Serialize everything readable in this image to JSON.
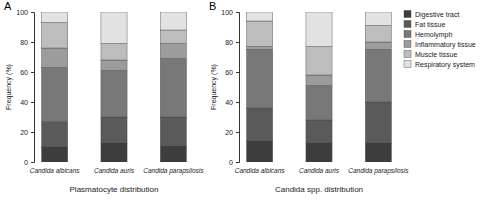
{
  "chart_data": [
    {
      "type": "bar",
      "stacked": true,
      "title": "A",
      "x_label": "Plasmatocyte distribution",
      "y_label": "Frequency (%)",
      "categories": [
        "Candida albicans",
        null,
        "Candida auris",
        null,
        "Candida parapsilosis"
      ],
      "ylim": [
        0,
        100
      ],
      "yticks": [
        0,
        20,
        40,
        60,
        80,
        100
      ],
      "series": [
        {
          "name": "Digestive tract",
          "color": "#3d3d3d",
          "values": [
            10,
            0,
            13,
            0,
            11
          ]
        },
        {
          "name": "Fat tissue",
          "color": "#5a5a5a",
          "values": [
            17,
            0,
            17,
            0,
            19
          ]
        },
        {
          "name": "Hemolymph",
          "color": "#787878",
          "values": [
            36,
            0,
            31,
            0,
            39
          ]
        },
        {
          "name": "Inflammatory tissue",
          "color": "#9c9c9c",
          "values": [
            13,
            0,
            7,
            0,
            10
          ]
        },
        {
          "name": "Muscle tissue",
          "color": "#bdbdbd",
          "values": [
            17,
            0,
            11,
            0,
            9
          ]
        },
        {
          "name": "Respiratory system",
          "color": "#e2e2e2",
          "values": [
            7,
            0,
            21,
            0,
            12
          ]
        }
      ]
    },
    {
      "type": "bar",
      "stacked": true,
      "title": "B",
      "legend": "right",
      "x_label": "Candida spp. distribution",
      "y_label": "Frequency (%)",
      "categories": [
        "Candida albicans",
        null,
        "Candida auris",
        null,
        "Candida parapsilosis"
      ],
      "ylim": [
        0,
        100
      ],
      "yticks": [
        0,
        20,
        40,
        60,
        80,
        100
      ],
      "series": [
        {
          "name": "Digestive tract",
          "color": "#3d3d3d",
          "values": [
            14,
            0,
            13,
            0,
            13
          ]
        },
        {
          "name": "Fat tissue",
          "color": "#5a5a5a",
          "values": [
            22,
            0,
            15,
            0,
            27
          ]
        },
        {
          "name": "Hemolymph",
          "color": "#787878",
          "values": [
            39,
            0,
            23,
            0,
            35
          ]
        },
        {
          "name": "Inflammatory tissue",
          "color": "#9c9c9c",
          "values": [
            2,
            0,
            7,
            0,
            5
          ]
        },
        {
          "name": "Muscle tissue",
          "color": "#bdbdbd",
          "values": [
            17,
            0,
            19,
            0,
            11
          ]
        },
        {
          "name": "Respiratory system",
          "color": "#e2e2e2",
          "values": [
            6,
            0,
            23,
            0,
            9
          ]
        }
      ]
    }
  ]
}
